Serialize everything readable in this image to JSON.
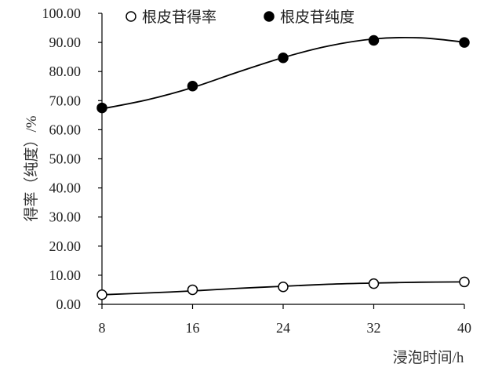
{
  "chart_data": {
    "type": "scatter",
    "x": [
      8,
      16,
      24,
      32,
      40
    ],
    "xticks": [
      "8",
      "16",
      "24",
      "32",
      "40"
    ],
    "yticks": [
      "0.00",
      "10.00",
      "20.00",
      "30.00",
      "40.00",
      "50.00",
      "60.00",
      "70.00",
      "80.00",
      "90.00",
      "100.00"
    ],
    "xlim": [
      8,
      40
    ],
    "ylim": [
      0,
      100
    ],
    "xlabel": "浸泡时间/h",
    "ylabel": "得率（纯度）/%",
    "grid": false,
    "legend_position": "top",
    "series": [
      {
        "name": "根皮苷得率",
        "marker": "open-circle",
        "values": [
          3.3,
          5.0,
          6.0,
          7.1,
          7.7
        ],
        "trend": [
          [
            8,
            3.3
          ],
          [
            12,
            3.9
          ],
          [
            16,
            4.6
          ],
          [
            20,
            5.5
          ],
          [
            24,
            6.2
          ],
          [
            28,
            6.9
          ],
          [
            32,
            7.3
          ],
          [
            36,
            7.6
          ],
          [
            40,
            7.7
          ]
        ]
      },
      {
        "name": "根皮苷纯度",
        "marker": "filled-circle",
        "values": [
          67.5,
          75.0,
          84.7,
          90.7,
          90.0
        ],
        "trend": [
          [
            8,
            67.2
          ],
          [
            12,
            70.3
          ],
          [
            16,
            74.5
          ],
          [
            20,
            79.8
          ],
          [
            24,
            84.8
          ],
          [
            28,
            88.8
          ],
          [
            32,
            91.2
          ],
          [
            36,
            91.6
          ],
          [
            40,
            90.1
          ]
        ]
      }
    ],
    "colors": {
      "line": "#000000",
      "text": "#222222"
    }
  }
}
